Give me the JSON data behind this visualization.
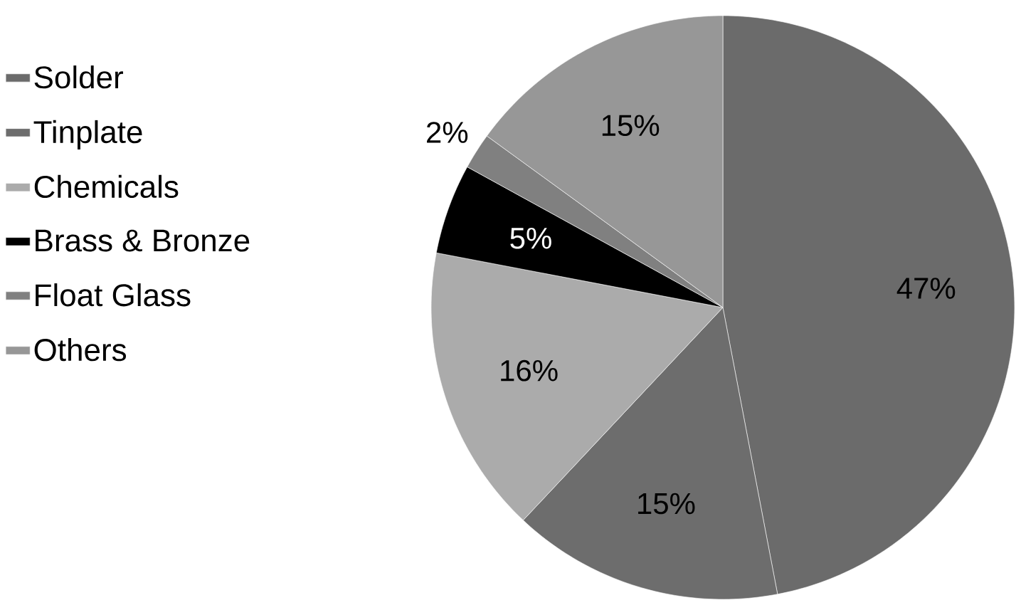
{
  "chart_data": {
    "type": "pie",
    "categories": [
      "Solder",
      "Tinplate",
      "Chemicals",
      "Brass & Bronze",
      "Float Glass",
      "Others"
    ],
    "values": [
      47,
      15,
      16,
      5,
      2,
      15
    ],
    "value_labels": [
      "47%",
      "15%",
      "16%",
      "5%",
      "2%",
      "15%"
    ],
    "colors": [
      "#6b6b6b",
      "#6d6d6d",
      "#ababab",
      "#000000",
      "#808080",
      "#979797"
    ],
    "legend": "left"
  }
}
